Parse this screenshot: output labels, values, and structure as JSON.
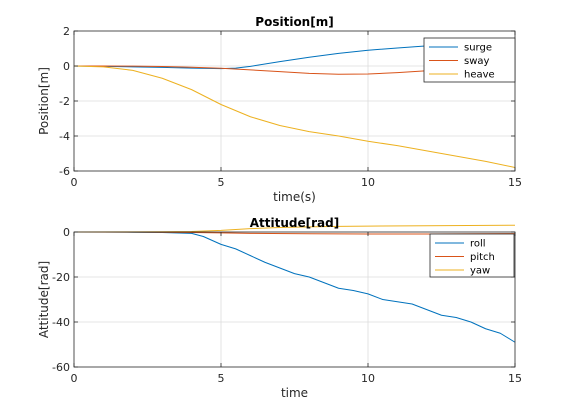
{
  "chart_data": [
    {
      "type": "line",
      "title": "Position[m]",
      "xlabel": "time(s)",
      "ylabel": "Position[m]",
      "xlim": [
        0,
        15
      ],
      "ylim": [
        -6,
        2
      ],
      "xticks": [
        0,
        5,
        10,
        15
      ],
      "yticks": [
        2,
        0,
        -2,
        -4,
        -6
      ],
      "grid": true,
      "legend": "top-right",
      "series": [
        {
          "name": "surge",
          "color": "#0072bd",
          "x": [
            0,
            1,
            2,
            3,
            4,
            5,
            5.5,
            6,
            7,
            8,
            9,
            10,
            11,
            12,
            13,
            14,
            15
          ],
          "y": [
            0,
            -0.02,
            -0.05,
            -0.08,
            -0.12,
            -0.15,
            -0.12,
            -0.02,
            0.25,
            0.5,
            0.72,
            0.9,
            1.03,
            1.15,
            1.22,
            1.3,
            1.4
          ]
        },
        {
          "name": "sway",
          "color": "#d95319",
          "x": [
            0,
            1,
            2,
            3,
            4,
            5,
            6,
            7,
            8,
            9,
            10,
            11,
            12,
            13,
            14,
            15
          ],
          "y": [
            0,
            0,
            -0.01,
            -0.03,
            -0.07,
            -0.13,
            -0.22,
            -0.32,
            -0.42,
            -0.47,
            -0.46,
            -0.38,
            -0.27,
            -0.15,
            -0.05,
            0.05
          ]
        },
        {
          "name": "heave",
          "color": "#edb120",
          "x": [
            0,
            1,
            2,
            3,
            4,
            5,
            6,
            7,
            8,
            9,
            10,
            11,
            12,
            13,
            14,
            15
          ],
          "y": [
            0,
            -0.05,
            -0.25,
            -0.7,
            -1.35,
            -2.2,
            -2.9,
            -3.4,
            -3.75,
            -4.0,
            -4.3,
            -4.55,
            -4.85,
            -5.15,
            -5.45,
            -5.8
          ]
        }
      ]
    },
    {
      "type": "line",
      "title": "Attitude[rad]",
      "xlabel": "time",
      "ylabel": "Attitude[rad]",
      "xlim": [
        0,
        15
      ],
      "ylim": [
        -60,
        0
      ],
      "xticks": [
        0,
        5,
        10,
        15
      ],
      "yticks": [
        0,
        -20,
        -40,
        -60
      ],
      "grid": true,
      "legend": "top-right",
      "series": [
        {
          "name": "roll",
          "color": "#0072bd",
          "x": [
            0,
            1,
            2,
            3,
            4,
            4.4,
            5,
            5.5,
            6,
            6.5,
            7,
            7.5,
            8,
            8.5,
            9,
            9.5,
            10,
            10.5,
            11,
            11.5,
            12,
            12.5,
            13,
            13.5,
            14,
            14.5,
            15
          ],
          "y": [
            0,
            0,
            -0.1,
            -0.2,
            -0.6,
            -2,
            -5.5,
            -7.5,
            -10.5,
            -13.5,
            -16,
            -18.5,
            -20,
            -22.5,
            -25,
            -26,
            -27.5,
            -30,
            -31,
            -32,
            -34.5,
            -37,
            -38,
            -40,
            -43,
            -45,
            -49
          ]
        },
        {
          "name": "pitch",
          "color": "#d95319",
          "x": [
            0,
            2,
            4,
            5,
            6,
            8,
            10,
            12,
            15
          ],
          "y": [
            0,
            -0.05,
            -0.2,
            -0.4,
            -0.6,
            -0.8,
            -0.9,
            -0.9,
            -0.7
          ]
        },
        {
          "name": "yaw",
          "color": "#edb120",
          "x": [
            0,
            2,
            3,
            4,
            5,
            6,
            7,
            8,
            9,
            10,
            12,
            15
          ],
          "y": [
            0,
            0.05,
            0.1,
            0.2,
            0.7,
            1.5,
            2.0,
            2.3,
            2.5,
            2.6,
            2.8,
            3.0
          ]
        }
      ]
    }
  ]
}
